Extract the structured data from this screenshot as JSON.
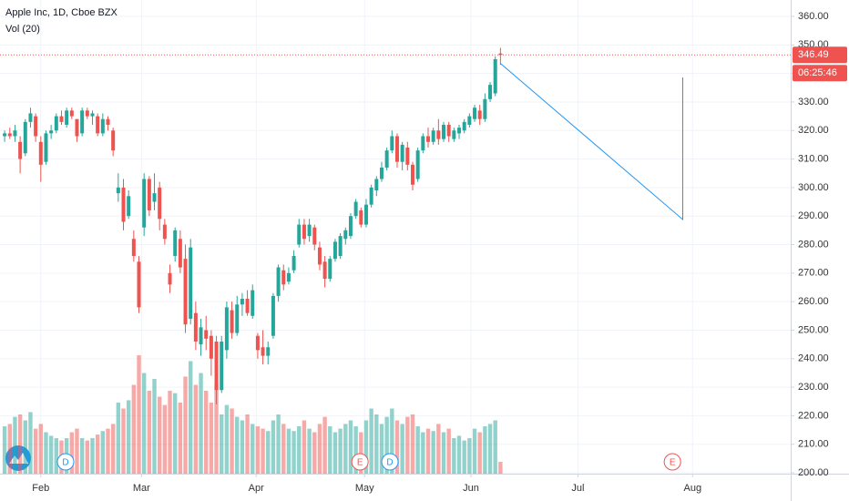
{
  "chart_data": {
    "type": "candlestick",
    "title": "Apple Inc, 1D, Cboe BZX",
    "indicator": "Vol (20)",
    "up_color": "#26a69a",
    "down_color": "#ef5350",
    "candles": {
      "open": [
        318,
        319,
        318,
        316,
        312,
        323,
        325,
        316,
        309,
        319,
        320,
        325,
        322,
        327,
        324,
        319,
        327,
        325,
        325,
        319,
        324,
        320,
        298,
        300,
        290,
        282,
        274,
        286,
        303,
        295,
        300,
        287,
        270,
        276,
        282,
        275,
        254,
        256,
        245,
        250,
        248,
        246,
        229,
        243,
        257,
        249,
        259,
        261,
        255,
        248,
        244,
        241,
        248,
        262,
        271,
        267,
        271,
        280,
        287,
        283,
        286,
        279,
        274,
        268,
        275,
        276,
        282,
        283,
        290,
        292,
        287,
        294,
        299,
        303,
        307,
        313,
        318,
        309,
        314,
        308,
        303,
        313,
        318,
        316,
        320,
        317,
        322,
        317,
        319,
        320,
        322,
        324,
        327,
        324,
        331,
        333,
        347
      ],
      "high": [
        320,
        321,
        322,
        318,
        324,
        328,
        326,
        318,
        320,
        322,
        326,
        327,
        328,
        328,
        324,
        328,
        328,
        327,
        326,
        326,
        325,
        321,
        305,
        303,
        299,
        285,
        276,
        305,
        304,
        305,
        302,
        289,
        273,
        286,
        285,
        280,
        282,
        260,
        254,
        255,
        250,
        248,
        248,
        260,
        260,
        262,
        263,
        264,
        266,
        249,
        250,
        246,
        263,
        273,
        273,
        272,
        278,
        289,
        289,
        289,
        287,
        281,
        276,
        276,
        282,
        284,
        286,
        291,
        296,
        293,
        296,
        301,
        304,
        309,
        314,
        320,
        319,
        316,
        316,
        309,
        314,
        319,
        321,
        321,
        324,
        323,
        323,
        321,
        322,
        324,
        326,
        329,
        329,
        333,
        337,
        346,
        349
      ],
      "low": [
        316,
        317,
        316,
        305,
        311,
        321,
        316,
        302,
        308,
        317,
        319,
        322,
        321,
        324,
        316,
        318,
        324,
        322,
        318,
        318,
        320,
        311,
        295,
        285,
        289,
        274,
        256,
        283,
        290,
        292,
        285,
        280,
        263,
        274,
        270,
        249,
        252,
        243,
        241,
        243,
        234,
        224,
        228,
        240,
        247,
        248,
        255,
        255,
        254,
        240,
        238,
        238,
        247,
        260,
        264,
        266,
        270,
        279,
        280,
        281,
        278,
        271,
        265,
        267,
        274,
        275,
        280,
        282,
        289,
        286,
        286,
        293,
        297,
        302,
        306,
        312,
        307,
        306,
        306,
        299,
        302,
        312,
        314,
        315,
        315,
        316,
        316,
        316,
        317,
        319,
        321,
        323,
        322,
        323,
        330,
        332,
        343
      ],
      "close": [
        319,
        318,
        320,
        310,
        323,
        326,
        318,
        308,
        319,
        320,
        325,
        323,
        327,
        325,
        318,
        327,
        325,
        326,
        319,
        324,
        322,
        313,
        300,
        288,
        297,
        276,
        258,
        303,
        292,
        298,
        289,
        282,
        266,
        285,
        272,
        252,
        279,
        246,
        251,
        247,
        240,
        229,
        246,
        258,
        249,
        259,
        261,
        256,
        264,
        243,
        241,
        244,
        262,
        272,
        266,
        270,
        276,
        287,
        282,
        287,
        280,
        273,
        268,
        275,
        281,
        283,
        285,
        290,
        295,
        287,
        294,
        300,
        303,
        307,
        313,
        318,
        309,
        315,
        308,
        301,
        313,
        318,
        316,
        320,
        317,
        322,
        318,
        320,
        321,
        323,
        325,
        328,
        324,
        331,
        336,
        345,
        346.49
      ]
    },
    "volume": [
      40,
      42,
      48,
      50,
      45,
      52,
      38,
      42,
      35,
      32,
      30,
      28,
      30,
      35,
      38,
      30,
      28,
      30,
      33,
      36,
      38,
      42,
      60,
      55,
      62,
      75,
      100,
      85,
      70,
      80,
      65,
      58,
      70,
      68,
      60,
      82,
      95,
      75,
      85,
      70,
      60,
      75,
      50,
      58,
      55,
      48,
      45,
      50,
      42,
      40,
      38,
      36,
      45,
      50,
      42,
      38,
      36,
      40,
      45,
      38,
      35,
      42,
      48,
      40,
      35,
      38,
      42,
      45,
      40,
      35,
      45,
      55,
      50,
      42,
      48,
      55,
      45,
      42,
      48,
      50,
      40,
      35,
      38,
      36,
      42,
      35,
      38,
      30,
      32,
      28,
      30,
      38,
      35,
      40,
      42,
      45,
      10
    ],
    "volume_lim": [
      0,
      100
    ],
    "ylim": [
      200,
      365.75
    ],
    "yticks": [
      {
        "value": 200,
        "label": "200.00"
      },
      {
        "value": 210,
        "label": "210.00"
      },
      {
        "value": 220,
        "label": "220.00"
      },
      {
        "value": 230,
        "label": "230.00"
      },
      {
        "value": 240,
        "label": "240.00"
      },
      {
        "value": 250,
        "label": "250.00"
      },
      {
        "value": 260,
        "label": "260.00"
      },
      {
        "value": 270,
        "label": "270.00"
      },
      {
        "value": 280,
        "label": "280.00"
      },
      {
        "value": 290,
        "label": "290.00"
      },
      {
        "value": 300,
        "label": "300.00"
      },
      {
        "value": 310,
        "label": "310.00"
      },
      {
        "value": 320,
        "label": "320.00"
      },
      {
        "value": 330,
        "label": "330.00"
      },
      {
        "value": 340,
        "label": "340.00"
      },
      {
        "value": 350,
        "label": "350.00"
      },
      {
        "value": 360,
        "label": "360.00"
      }
    ],
    "xlim": [
      -0.9,
      152.2
    ],
    "xticks": [
      {
        "value": 7,
        "label": "Feb"
      },
      {
        "value": 26.5,
        "label": "Mar"
      },
      {
        "value": 48.7,
        "label": "Apr"
      },
      {
        "value": 69.7,
        "label": "May"
      },
      {
        "value": 90.3,
        "label": "Jun"
      },
      {
        "value": 111,
        "label": "Jul"
      },
      {
        "value": 133.2,
        "label": "Aug"
      }
    ],
    "grid": true,
    "last_price": 346.49,
    "countdown": "06:25:46",
    "drawing": {
      "color": "#2196f3",
      "x": [
        96,
        131.3,
        131.3
      ],
      "y": [
        343.5,
        288.8,
        338.6
      ]
    },
    "events": [
      {
        "x": 11.8,
        "label": "D",
        "color": "#2196f3"
      },
      {
        "x": 68.8,
        "label": "E",
        "color": "#ef5350"
      },
      {
        "x": 74.6,
        "label": "D",
        "color": "#2196f3"
      },
      {
        "x": 129.3,
        "label": "E",
        "color": "#ef5350"
      }
    ]
  }
}
